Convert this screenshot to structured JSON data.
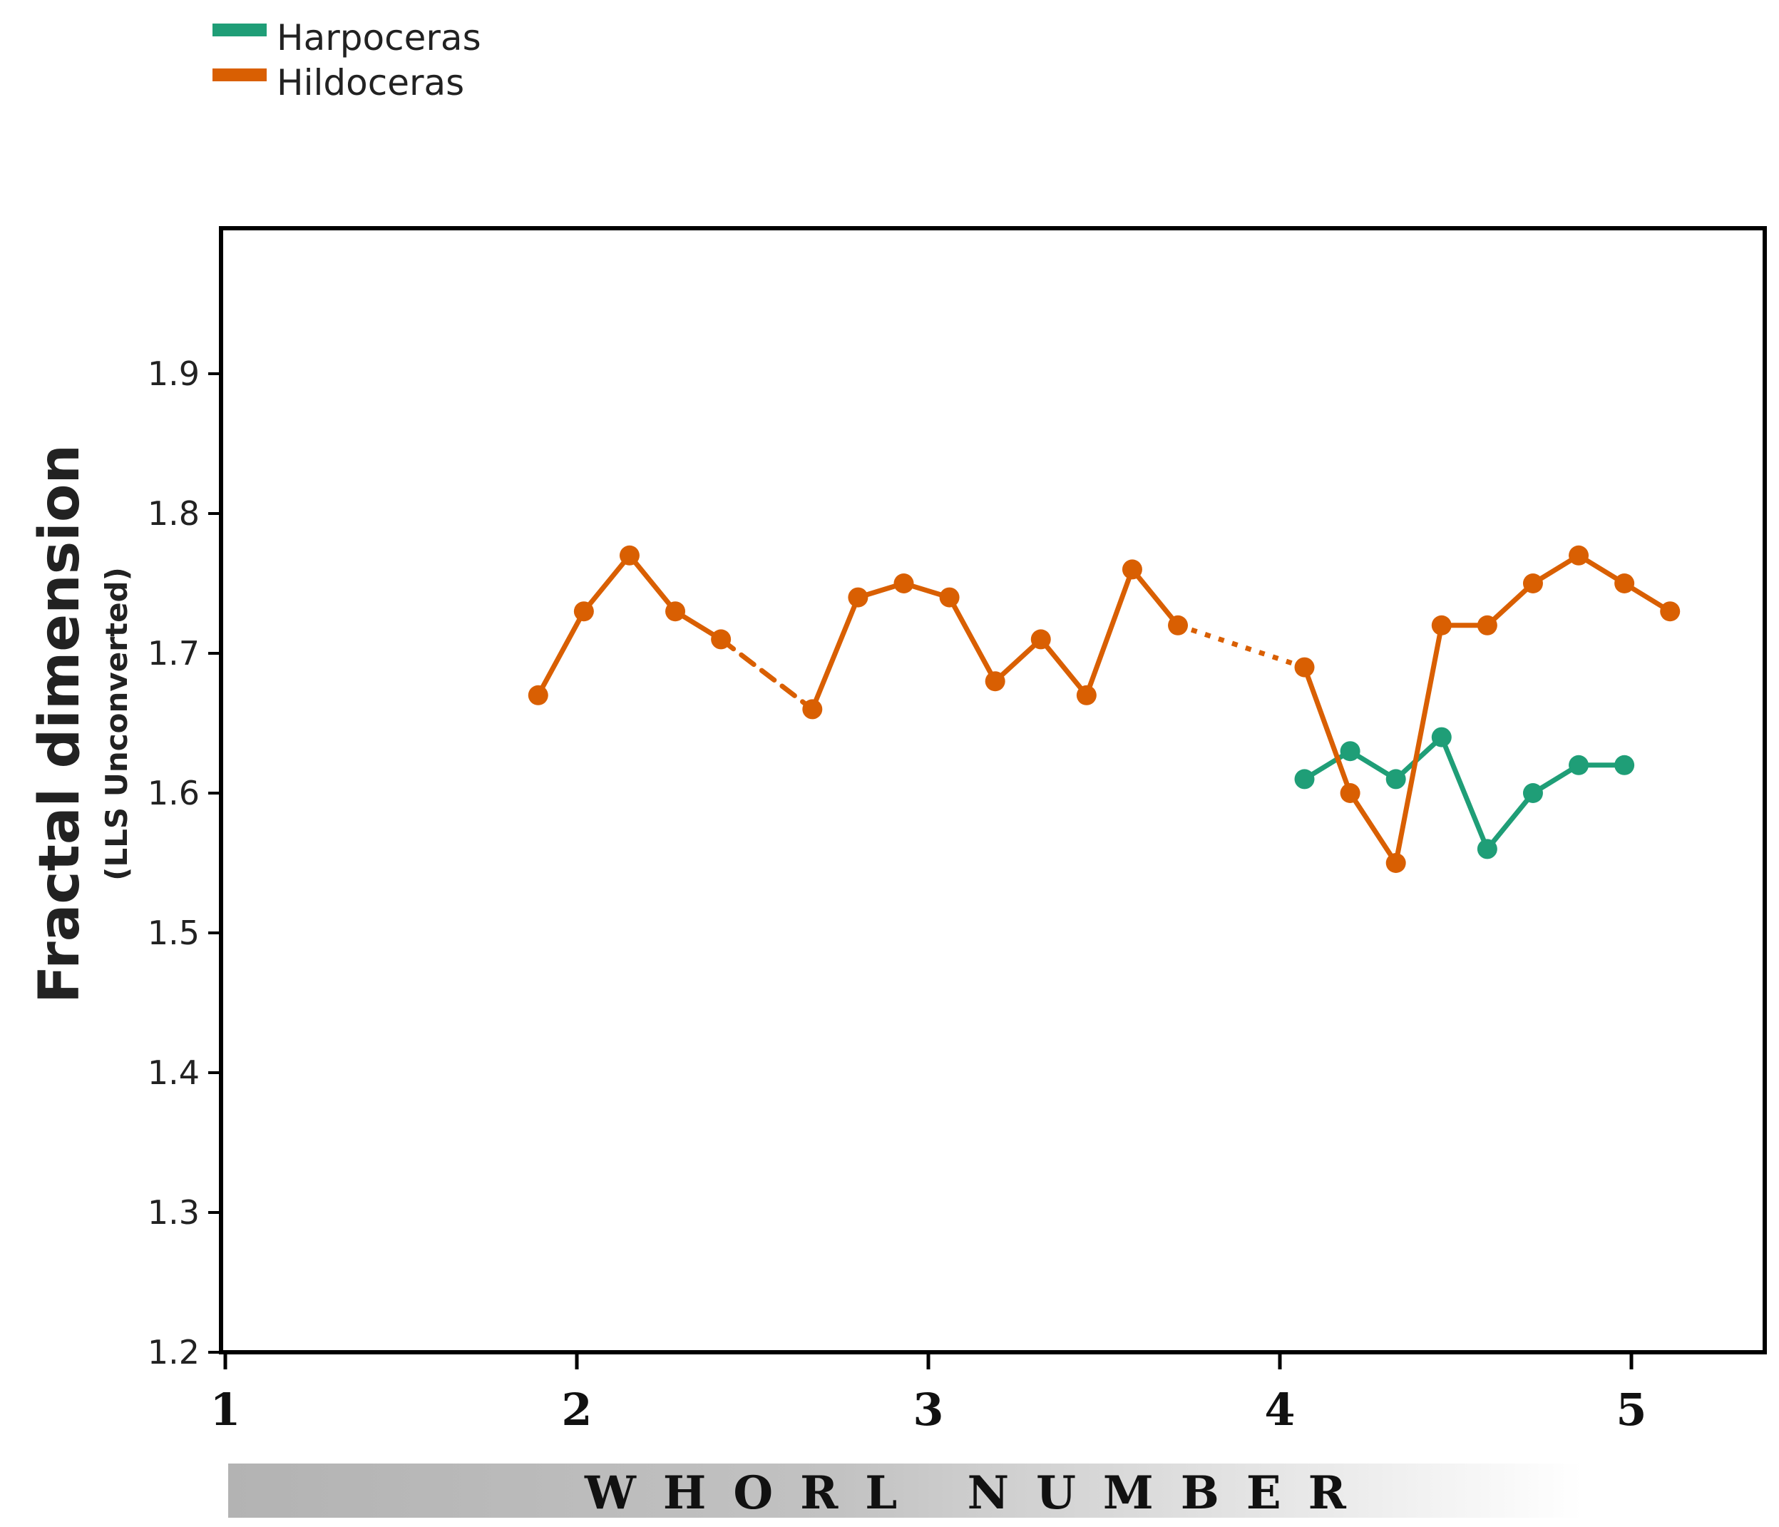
{
  "chart_data": {
    "type": "line",
    "xlabel": "WHORL NUMBER",
    "ylabel": "Fractal dimension",
    "ylabel_sub": "(LLS Unconverted)",
    "xlim": [
      1,
      5.35
    ],
    "ylim": [
      1.2,
      2.0
    ],
    "x_ticks": [
      1,
      2,
      3,
      4,
      5
    ],
    "x_tick_labels": [
      "1",
      "2",
      "3",
      "4",
      "5"
    ],
    "y_ticks": [
      1.2,
      1.3,
      1.4,
      1.5,
      1.6,
      1.7,
      1.8,
      1.9
    ],
    "y_tick_labels": [
      "1.2",
      "1.3",
      "1.4",
      "1.5",
      "1.6",
      "1.7",
      "1.8",
      "1.9"
    ],
    "grid": false,
    "legend": "top-left",
    "series": [
      {
        "name": "Harpoceras",
        "color": "#1f9e77",
        "x": [
          4.07,
          4.2,
          4.33,
          4.46,
          4.59,
          4.72,
          4.85,
          4.98
        ],
        "y": [
          1.61,
          1.63,
          1.61,
          1.64,
          1.56,
          1.6,
          1.62,
          1.62
        ],
        "segment_styles": [
          "solid",
          "solid",
          "solid",
          "solid",
          "solid",
          "solid",
          "solid"
        ]
      },
      {
        "name": "Hildoceras",
        "color": "#d95f02",
        "x": [
          1.89,
          2.02,
          2.15,
          2.28,
          2.41,
          2.67,
          2.8,
          2.93,
          3.06,
          3.19,
          3.32,
          3.45,
          3.58,
          3.71,
          4.07,
          4.2,
          4.33,
          4.46,
          4.59,
          4.72,
          4.85,
          4.98,
          5.11
        ],
        "y": [
          1.67,
          1.73,
          1.77,
          1.73,
          1.71,
          1.66,
          1.74,
          1.75,
          1.74,
          1.68,
          1.71,
          1.67,
          1.76,
          1.72,
          1.69,
          1.6,
          1.55,
          1.72,
          1.72,
          1.75,
          1.77,
          1.75,
          1.73
        ],
        "segment_styles": [
          "solid",
          "solid",
          "solid",
          "solid",
          "dashed",
          "solid",
          "solid",
          "solid",
          "solid",
          "solid",
          "solid",
          "solid",
          "solid",
          "dotted",
          "solid",
          "solid",
          "solid",
          "solid",
          "solid",
          "solid",
          "solid",
          "solid"
        ]
      }
    ]
  }
}
